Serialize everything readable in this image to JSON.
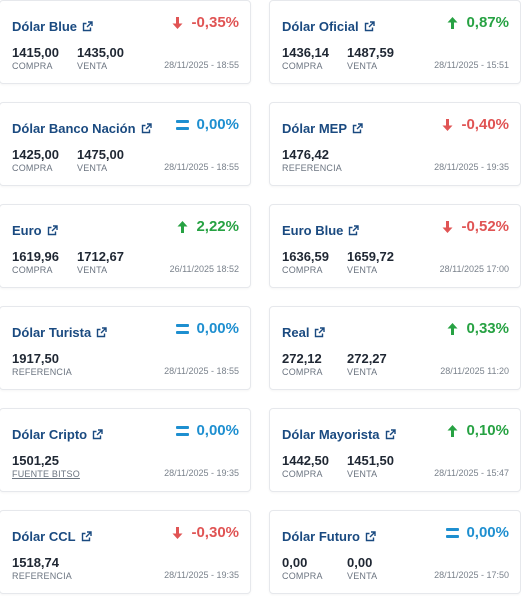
{
  "cards": [
    {
      "title": "Dólar Blue",
      "dir": "down",
      "change": "-0,35%",
      "values": [
        {
          "num": "1415,00",
          "label": "COMPRA"
        },
        {
          "num": "1435,00",
          "label": "VENTA"
        }
      ],
      "date": "28/11/2025 - 18:55"
    },
    {
      "title": "Dólar Oficial",
      "dir": "up",
      "change": "0,87%",
      "values": [
        {
          "num": "1436,14",
          "label": "COMPRA"
        },
        {
          "num": "1487,59",
          "label": "VENTA"
        }
      ],
      "date": "28/11/2025 - 15:51"
    },
    {
      "title": "Dólar Banco Nación",
      "dir": "eq",
      "change": "0,00%",
      "values": [
        {
          "num": "1425,00",
          "label": "COMPRA"
        },
        {
          "num": "1475,00",
          "label": "VENTA"
        }
      ],
      "date": "28/11/2025 - 18:55"
    },
    {
      "title": "Dólar MEP",
      "dir": "down",
      "change": "-0,40%",
      "values": [
        {
          "num": "1476,42",
          "label": "REFERENCIA"
        }
      ],
      "date": "28/11/2025 - 19:35"
    },
    {
      "title": "Euro",
      "dir": "up",
      "change": "2,22%",
      "values": [
        {
          "num": "1619,96",
          "label": "COMPRA"
        },
        {
          "num": "1712,67",
          "label": "VENTA"
        }
      ],
      "date": "26/11/2025 18:52"
    },
    {
      "title": "Euro Blue",
      "dir": "down",
      "change": "-0,52%",
      "values": [
        {
          "num": "1636,59",
          "label": "COMPRA"
        },
        {
          "num": "1659,72",
          "label": "VENTA"
        }
      ],
      "date": "28/11/2025 17:00"
    },
    {
      "title": "Dólar Turista",
      "dir": "eq",
      "change": "0,00%",
      "values": [
        {
          "num": "1917,50",
          "label": "REFERENCIA"
        }
      ],
      "date": "28/11/2025 - 18:55"
    },
    {
      "title": "Real",
      "dir": "up",
      "change": "0,33%",
      "values": [
        {
          "num": "272,12",
          "label": "COMPRA"
        },
        {
          "num": "272,27",
          "label": "VENTA"
        }
      ],
      "date": "28/11/2025 11:20"
    },
    {
      "title": "Dólar Cripto",
      "dir": "eq",
      "change": "0,00%",
      "values": [
        {
          "num": "1501,25",
          "label": "FUENTE BITSO",
          "link": true
        }
      ],
      "date": "28/11/2025 - 19:35"
    },
    {
      "title": "Dólar Mayorista",
      "dir": "up",
      "change": "0,10%",
      "values": [
        {
          "num": "1442,50",
          "label": "COMPRA"
        },
        {
          "num": "1451,50",
          "label": "VENTA"
        }
      ],
      "date": "28/11/2025 - 15:47"
    },
    {
      "title": "Dólar CCL",
      "dir": "down",
      "change": "-0,30%",
      "values": [
        {
          "num": "1518,74",
          "label": "REFERENCIA"
        }
      ],
      "date": "28/11/2025 - 19:35"
    },
    {
      "title": "Dólar Futuro",
      "dir": "eq",
      "change": "0,00%",
      "values": [
        {
          "num": "0,00",
          "label": "COMPRA"
        },
        {
          "num": "0,00",
          "label": "VENTA"
        }
      ],
      "date": "28/11/2025 - 17:50"
    }
  ],
  "colors": {
    "title": "#1a4a80",
    "down": "#e05454",
    "up": "#27a243",
    "eq": "#1e8fd0"
  },
  "icons": {
    "title": "external-link-icon",
    "down": "arrow-down-icon",
    "up": "arrow-up-icon",
    "eq": "equals-icon"
  }
}
